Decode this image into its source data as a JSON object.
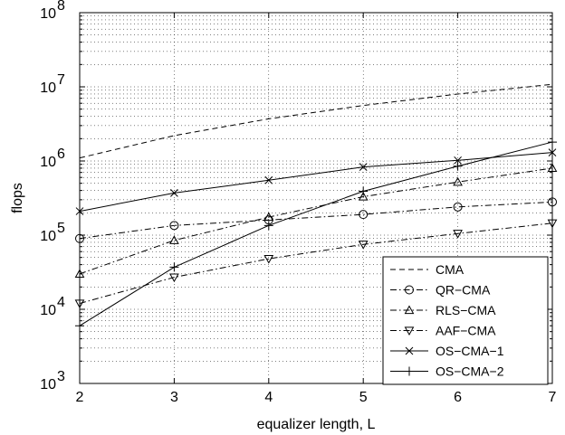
{
  "chart_data": {
    "type": "line",
    "xlabel": "equalizer length, L",
    "ylabel": "flops",
    "x": [
      2,
      3,
      4,
      5,
      6,
      7
    ],
    "xlim": [
      2,
      7
    ],
    "ylim": [
      1000,
      100000000
    ],
    "yscale": "log",
    "x_tick_labels": [
      "2",
      "3",
      "4",
      "5",
      "6",
      "7"
    ],
    "y_ticks": [
      {
        "base": "10",
        "exp": "3",
        "value": 1000
      },
      {
        "base": "10",
        "exp": "4",
        "value": 10000
      },
      {
        "base": "10",
        "exp": "5",
        "value": 100000
      },
      {
        "base": "10",
        "exp": "6",
        "value": 1000000
      },
      {
        "base": "10",
        "exp": "7",
        "value": 10000000
      },
      {
        "base": "10",
        "exp": "8",
        "value": 100000000
      }
    ],
    "grid": true,
    "legend_position": "bottom-right",
    "series": [
      {
        "name": "CMA",
        "marker": "none",
        "dash": "dashed",
        "values": [
          1100000,
          2200000,
          3700000,
          5600000,
          8000000,
          10800000
        ]
      },
      {
        "name": "QR−CMA",
        "marker": "circle",
        "dash": "dashdot",
        "values": [
          90000,
          135000,
          160000,
          190000,
          240000,
          280000
        ]
      },
      {
        "name": "RLS−CMA",
        "marker": "triangle-up",
        "dash": "dashdot",
        "values": [
          30000,
          85000,
          175000,
          330000,
          520000,
          800000
        ]
      },
      {
        "name": "AAF−CMA",
        "marker": "triangle-down",
        "dash": "dashdot",
        "values": [
          12000,
          27000,
          48000,
          75000,
          105000,
          145000
        ]
      },
      {
        "name": "OS−CMA−1",
        "marker": "x",
        "dash": "solid",
        "values": [
          210000,
          370000,
          550000,
          830000,
          1020000,
          1300000
        ]
      },
      {
        "name": "OS−CMA−2",
        "marker": "plus",
        "dash": "solid",
        "values": [
          6000,
          37000,
          135000,
          390000,
          850000,
          1800000
        ]
      }
    ]
  }
}
